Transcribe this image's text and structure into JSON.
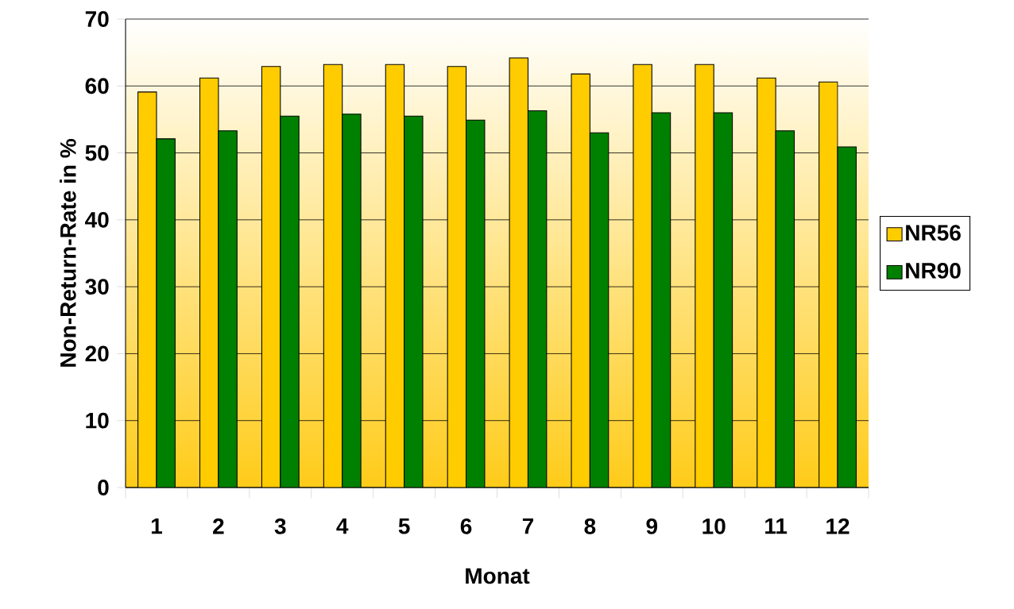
{
  "chart_data": {
    "type": "bar",
    "xlabel": "Monat",
    "ylabel": "Non-Return-Rate in %",
    "categories": [
      "1",
      "2",
      "3",
      "4",
      "5",
      "6",
      "7",
      "8",
      "9",
      "10",
      "11",
      "12"
    ],
    "series": [
      {
        "name": "NR56",
        "color": "#ffcc00",
        "values": [
          59.1,
          61.2,
          62.9,
          63.2,
          63.2,
          62.9,
          64.2,
          61.8,
          63.2,
          63.2,
          61.2,
          60.6
        ]
      },
      {
        "name": "NR90",
        "color": "#008000",
        "values": [
          52.1,
          53.3,
          55.5,
          55.8,
          55.5,
          54.9,
          56.3,
          53.0,
          56.0,
          56.0,
          53.3,
          50.9
        ]
      }
    ],
    "ylim": [
      0,
      70
    ],
    "yticks": [
      0,
      10,
      20,
      30,
      40,
      50,
      60,
      70
    ],
    "grid": "y",
    "legend": "right"
  }
}
